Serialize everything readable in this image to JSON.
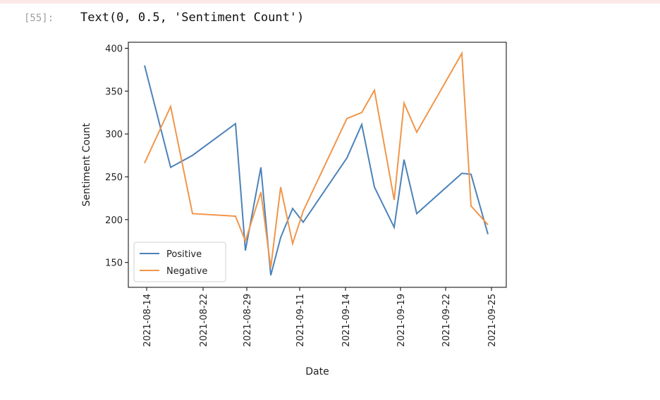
{
  "cell": {
    "prompt": "[55]:",
    "output": "Text(0, 0.5, 'Sentiment Count')"
  },
  "chart_data": {
    "type": "line",
    "xlabel": "Date",
    "ylabel": "Sentiment Count",
    "x": [
      2.3,
      6.0,
      9.1,
      15.2,
      16.6,
      18.8,
      20.2,
      21.6,
      23.3,
      24.8,
      31.0,
      33.1,
      34.9,
      37.7,
      39.1,
      40.9,
      47.3,
      48.6,
      51.0
    ],
    "series": [
      {
        "name": "Positive",
        "color": "#4c82b9",
        "values": [
          380,
          261,
          275,
          312,
          164,
          261,
          135,
          179,
          213,
          197,
          272,
          311,
          238,
          191,
          270,
          207,
          254,
          253,
          183
        ]
      },
      {
        "name": "Negative",
        "color": "#f0964a",
        "values": [
          266,
          332,
          207,
          204,
          175,
          232,
          144,
          238,
          172,
          210,
          318,
          325,
          351,
          223,
          336,
          302,
          394,
          216,
          194
        ]
      }
    ],
    "xlim": [
      0,
      53.6
    ],
    "xticks": [
      {
        "value": 2.6,
        "label": "2021-08-14"
      },
      {
        "value": 10.6,
        "label": "2021-08-22"
      },
      {
        "value": 16.8,
        "label": "2021-08-29"
      },
      {
        "value": 24.3,
        "label": "2021-09-11"
      },
      {
        "value": 30.8,
        "label": "2021-09-14"
      },
      {
        "value": 38.6,
        "label": "2021-09-19"
      },
      {
        "value": 45.0,
        "label": "2021-09-22"
      },
      {
        "value": 51.5,
        "label": "2021-09-25"
      }
    ],
    "ylim": [
      121,
      407
    ],
    "yticks": [
      150,
      200,
      250,
      300,
      350,
      400
    ],
    "legend": "lower left"
  }
}
